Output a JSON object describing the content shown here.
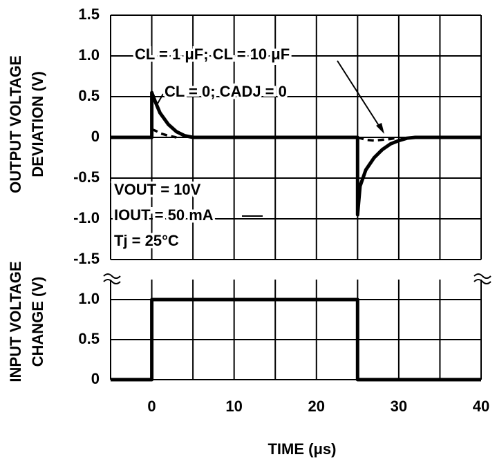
{
  "chart_data": [
    {
      "type": "line",
      "ylabel": [
        "OUTPUT VOLTAGE",
        "DEVIATION (V)"
      ],
      "xlim": [
        -5,
        40
      ],
      "ylim": [
        -1.5,
        1.5
      ],
      "xgrid": [
        -5,
        0,
        5,
        10,
        15,
        20,
        25,
        30,
        35,
        40
      ],
      "yticks": [
        -1.5,
        {
          "value": -1,
          "label": "-1.0"
        },
        -0.5,
        0,
        0.5,
        {
          "value": 1,
          "label": "1.0"
        },
        1.5
      ],
      "grid": true,
      "series": [
        {
          "name": "CL = 0; CADJ = 0",
          "color": "#000000",
          "style": "solid",
          "x": [
            -5,
            0,
            0,
            0.5,
            1,
            2,
            3,
            4,
            5,
            25,
            25,
            25.3,
            26,
            27,
            28,
            29,
            30,
            31,
            32,
            40
          ],
          "values": [
            0,
            0,
            0.55,
            0.42,
            0.3,
            0.16,
            0.07,
            0.02,
            0,
            0,
            -0.95,
            -0.6,
            -0.4,
            -0.25,
            -0.15,
            -0.08,
            -0.04,
            -0.01,
            0,
            0
          ]
        },
        {
          "name": "CL = 1 μF; CL = 10 μF",
          "color": "#000000",
          "style": "dashed",
          "x": [
            0,
            0.5,
            1,
            2,
            3,
            14,
            25,
            26,
            27,
            28,
            29,
            30
          ],
          "values": [
            0.1,
            0.08,
            0.05,
            0.02,
            0,
            null,
            0,
            -0.03,
            -0.04,
            -0.03,
            -0.02,
            0
          ]
        }
      ],
      "annotations": [
        "VOUT = 10V",
        "IOUT = 50 mA",
        "Tj = 25°C"
      ]
    },
    {
      "type": "line",
      "ylabel": [
        "INPUT VOLTAGE",
        "CHANGE (V)"
      ],
      "xlabel": "TIME (μs)",
      "xlim": [
        -5,
        40
      ],
      "ylim": [
        0,
        1.25
      ],
      "xgrid": [
        -5,
        0,
        5,
        10,
        15,
        20,
        25,
        30,
        35,
        40
      ],
      "xticks": [
        0,
        10,
        20,
        30,
        40
      ],
      "yticks": [
        0,
        0.5,
        {
          "value": 1,
          "label": "1.0"
        }
      ],
      "grid": true,
      "series": [
        {
          "color": "#000000",
          "style": "solid",
          "x": [
            -5,
            0,
            0,
            25,
            25,
            40
          ],
          "values": [
            0,
            0,
            1,
            1,
            0,
            0
          ]
        }
      ]
    }
  ]
}
